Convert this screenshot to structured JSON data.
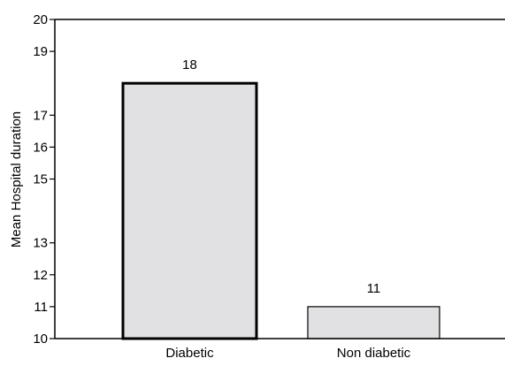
{
  "chart_data": {
    "type": "bar",
    "title": "",
    "xlabel": "",
    "ylabel": "Mean Hospital duration",
    "categories": [
      "Diabetic",
      "Non diabetic"
    ],
    "values": [
      18,
      11
    ],
    "data_labels": [
      "18",
      "11"
    ],
    "y_ticks": [
      10,
      11,
      12,
      13,
      15,
      16,
      17,
      19,
      20
    ],
    "ylim": [
      10,
      20
    ],
    "grid": false,
    "legend": "none",
    "colors": {
      "bar_fill": "#e1e1e3",
      "bar_stroke": "#000000"
    }
  }
}
